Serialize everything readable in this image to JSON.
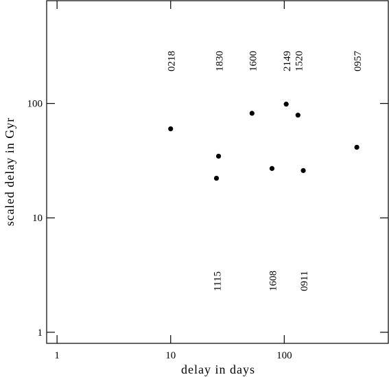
{
  "chart_data": {
    "type": "scatter",
    "xlabel": "delay in days",
    "ylabel": "scaled delay in Gyr",
    "xscale": "log",
    "yscale": "log",
    "xlim": [
      0.81,
      824
    ],
    "ylim": [
      0.8,
      791
    ],
    "xticks": [
      1,
      10,
      100
    ],
    "yticks": [
      1,
      10,
      100
    ],
    "color": "#000000",
    "x": [
      10,
      25.3,
      26.4,
      52,
      78,
      104,
      132,
      147,
      435
    ],
    "values": [
      60,
      22.2,
      34.6,
      82,
      27,
      98.6,
      79,
      25.9,
      41.4
    ],
    "labels": [
      "0218",
      "1115",
      "1830",
      "1600",
      "1608",
      "2149",
      "1520",
      "0911",
      "0957"
    ]
  }
}
